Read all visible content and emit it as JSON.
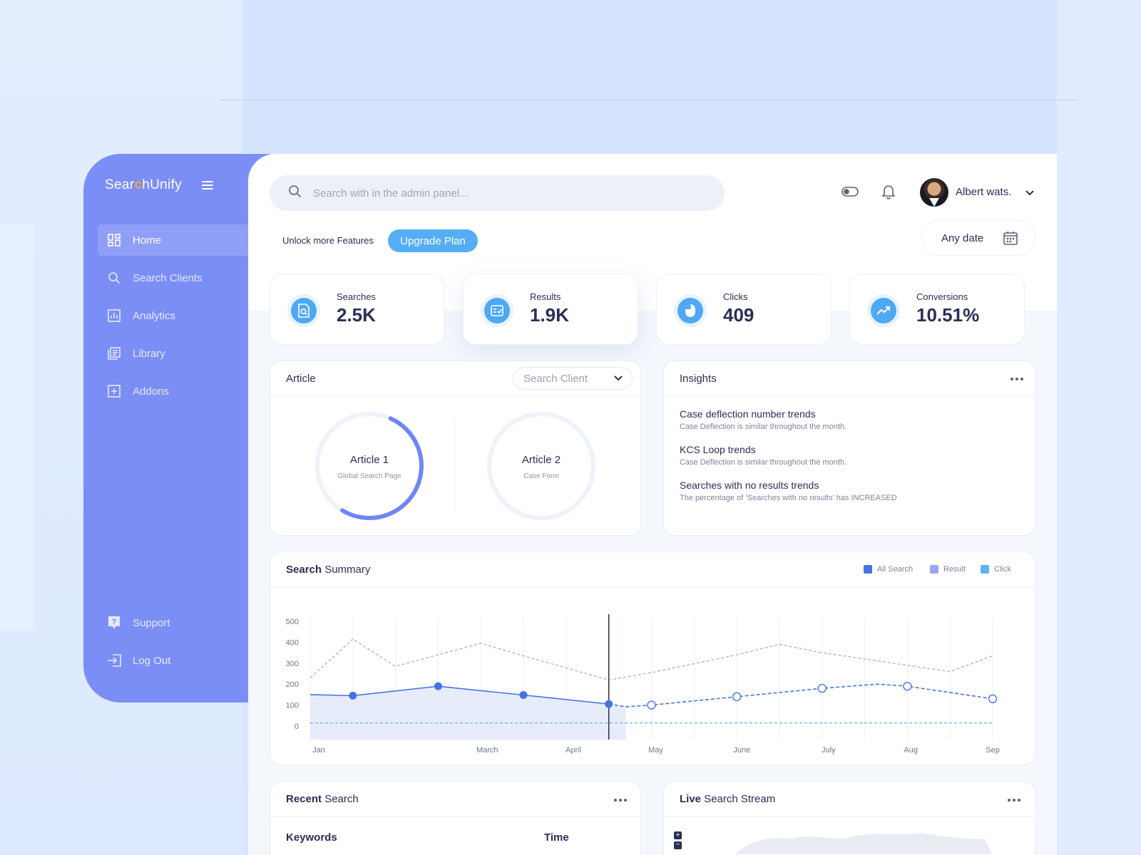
{
  "brand": {
    "prefix": "Sear",
    "accent": "c",
    "suffix": "hUnify"
  },
  "sidebar": {
    "items": [
      {
        "label": "Home",
        "icon": "dashboard-icon",
        "active": true
      },
      {
        "label": "Search Clients",
        "icon": "search-icon"
      },
      {
        "label": "Analytics",
        "icon": "analytics-icon"
      },
      {
        "label": "Library",
        "icon": "library-icon"
      },
      {
        "label": "Addons",
        "icon": "plus-square-icon"
      }
    ],
    "bottom": [
      {
        "label": "Support",
        "icon": "help-icon"
      },
      {
        "label": "Log Out",
        "icon": "logout-icon"
      }
    ]
  },
  "header": {
    "search_placeholder": "Search with in the admin panel...",
    "user_name": "Albert wats.",
    "unlock_text": "Unlock more Features",
    "upgrade_label": "Upgrade Plan",
    "date_label": "Any date"
  },
  "stats": [
    {
      "label": "Searches",
      "value": "2.5K",
      "icon": "search-doc-icon"
    },
    {
      "label": "Results",
      "value": "1.9K",
      "icon": "checklist-icon"
    },
    {
      "label": "Clicks",
      "value": "409",
      "icon": "mouse-icon"
    },
    {
      "label": "Conversions",
      "value": "10.51%",
      "icon": "trend-up-icon"
    }
  ],
  "article": {
    "title": "Article",
    "select_placeholder": "Search Client",
    "items": [
      {
        "title": "Article 1",
        "subtitle": "Global Search Page",
        "progress": 0.52
      },
      {
        "title": "Article 2",
        "subtitle": "Case Form",
        "progress": 0
      }
    ]
  },
  "insights": {
    "title": "Insights",
    "items": [
      {
        "title": "Case deflection number trends",
        "subtitle": "Case Deflection is similar throughout the month."
      },
      {
        "title": "KCS Loop trends",
        "subtitle": "Case Deflection is similar throughout the month."
      },
      {
        "title": "Searches with no results trends",
        "subtitle": "The percentage of ‘Searches with no results’ has INCREASED"
      }
    ]
  },
  "search_summary": {
    "title_bold": "Search",
    "title_rest": " Summary",
    "legend": [
      {
        "name": "All Search",
        "color": "#4573e4"
      },
      {
        "name": "Result",
        "color": "#9aa6f5"
      },
      {
        "name": "Click",
        "color": "#5fb4f6"
      }
    ]
  },
  "chart_data": {
    "type": "line",
    "yticks": [
      500,
      400,
      300,
      200,
      100,
      0
    ],
    "ylim": [
      0,
      500
    ],
    "x_tick_labels": [
      {
        "label": "Jan",
        "x": 0.2
      },
      {
        "label": "March",
        "x": 4.15
      },
      {
        "label": "April",
        "x": 6.17
      },
      {
        "label": "May",
        "x": 8.1
      },
      {
        "label": "June",
        "x": 10.12
      },
      {
        "label": "July",
        "x": 12.15
      },
      {
        "label": "Aug",
        "x": 14.08
      },
      {
        "label": "Sep",
        "x": 16
      }
    ],
    "xlim": [
      0,
      16.25
    ],
    "cursor_x": 7,
    "series": [
      {
        "name": "All Search",
        "points": [
          [
            0,
            150
          ],
          [
            1,
            145
          ],
          [
            3,
            190
          ],
          [
            5,
            148
          ],
          [
            7,
            105
          ],
          [
            7.4,
            92
          ],
          [
            8,
            100
          ],
          [
            10,
            140
          ],
          [
            12,
            180
          ],
          [
            13.3,
            200
          ],
          [
            14,
            190
          ],
          [
            16,
            130
          ]
        ],
        "markers": [
          1,
          3,
          5,
          7
        ],
        "hollow_markers": [
          8,
          10,
          12,
          14,
          16
        ],
        "solid_until": 7
      },
      {
        "name": "Result",
        "points": [
          [
            0,
            230
          ],
          [
            1,
            415
          ],
          [
            2,
            285
          ],
          [
            3,
            340
          ],
          [
            4,
            395
          ],
          [
            5,
            335
          ],
          [
            7,
            220
          ],
          [
            8,
            255
          ],
          [
            10,
            340
          ],
          [
            11,
            390
          ],
          [
            12,
            350
          ],
          [
            14,
            290
          ],
          [
            15,
            260
          ],
          [
            16,
            335
          ]
        ]
      },
      {
        "name": "Click",
        "points": [
          [
            0,
            15
          ],
          [
            7,
            15
          ],
          [
            16,
            15
          ]
        ]
      }
    ]
  },
  "recent_search": {
    "title_bold": "Recent",
    "title_rest": " Search",
    "col_keywords": "Keywords",
    "col_time": "Time"
  },
  "live_stream": {
    "title_bold": "Live",
    "title_rest": " Search Stream"
  }
}
